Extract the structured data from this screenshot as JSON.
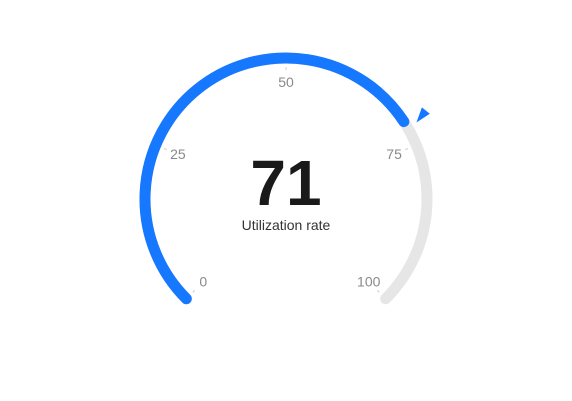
{
  "chart_data": {
    "type": "gauge",
    "min": 0,
    "max": 100,
    "value": 71,
    "value_label": "71",
    "label": "Utilization rate",
    "ticks": [
      {
        "value": 0,
        "label": "0"
      },
      {
        "value": 25,
        "label": "25"
      },
      {
        "value": 50,
        "label": "50"
      },
      {
        "value": 75,
        "label": "75"
      },
      {
        "value": 100,
        "label": "100"
      }
    ],
    "colors": {
      "progress": "#1677ff",
      "track": "#e6e6e6",
      "pointer": "#1677ff",
      "tick_text": "#8a8a8a",
      "value_text": "#1a1a1a",
      "caption_text": "#333333"
    }
  }
}
